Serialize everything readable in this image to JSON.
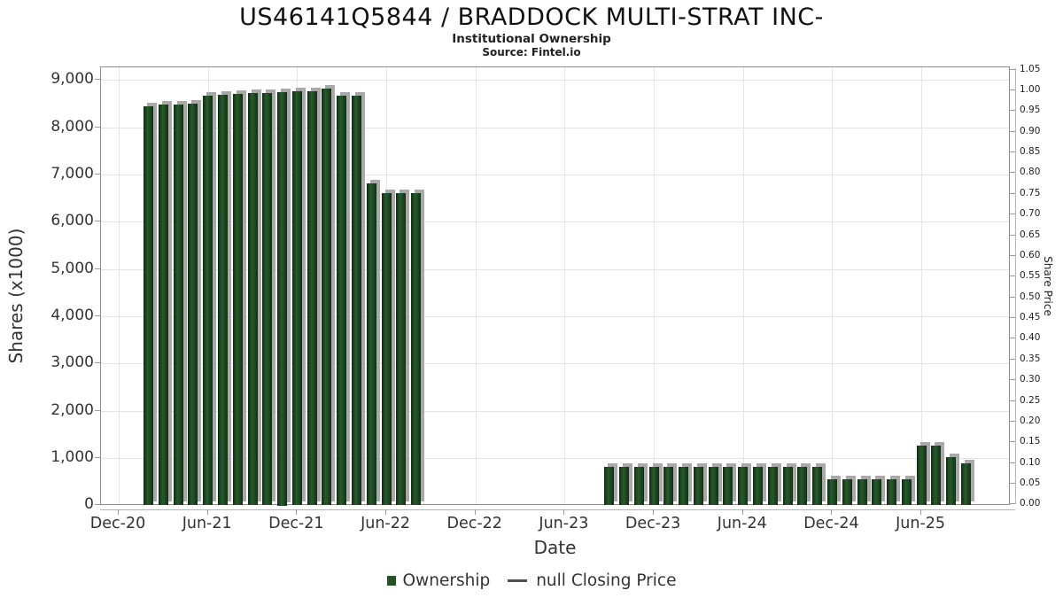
{
  "page": {
    "title": "US46141Q5844 / BRADDOCK MULTI-STRAT INC-",
    "subtitle": "Institutional Ownership",
    "source": "Source: Fintel.io"
  },
  "legend": {
    "items": [
      {
        "label": "Ownership",
        "marker": "square",
        "color": "#235226"
      },
      {
        "label": "null Closing Price",
        "marker": "line",
        "color": "#4d4d4d"
      }
    ]
  },
  "chart_data": {
    "type": "bar",
    "title": "US46141Q5844 / BRADDOCK MULTI-STRAT INC-",
    "subtitle": "Institutional Ownership",
    "source": "Source: Fintel.io",
    "xlabel": "Date",
    "ylabel": "Shares (x1000)",
    "ylabel_right": "Share Price",
    "grid": true,
    "legend_position": "bottom",
    "bar_color": "#1d4a23",
    "bar_shadow_color": "#a9a9a9",
    "x_axis": {
      "tick_labels": [
        "Dec-20",
        "Jun-21",
        "Dec-21",
        "Jun-22",
        "Dec-22",
        "Jun-23",
        "Dec-23",
        "Jun-24",
        "Dec-24",
        "Jun-25"
      ],
      "tick_interval_months": 6
    },
    "y_axis_left": {
      "min": 0,
      "max": 9000,
      "step": 1000,
      "tick_labels": [
        "9,000",
        "8,000",
        "7,000",
        "6,000",
        "5,000",
        "4,000",
        "3,000",
        "2,000",
        "1,000",
        "0"
      ]
    },
    "y_axis_right": {
      "min": 0.0,
      "max": 1.05,
      "step": 0.05,
      "tick_labels": [
        "1.05",
        "1.00",
        "0.95",
        "0.90",
        "0.85",
        "0.80",
        "0.75",
        "0.70",
        "0.65",
        "0.60",
        "0.55",
        "0.50",
        "0.45",
        "0.40",
        "0.35",
        "0.30",
        "0.25",
        "0.20",
        "0.15",
        "0.10",
        "0.05",
        "0.00"
      ]
    },
    "series": [
      {
        "name": "Ownership",
        "unit": "shares_x1000",
        "points": [
          {
            "month": "Feb-21",
            "value": 8440
          },
          {
            "month": "Mar-21",
            "value": 8480
          },
          {
            "month": "Apr-21",
            "value": 8480
          },
          {
            "month": "May-21",
            "value": 8500
          },
          {
            "month": "Jun-21",
            "value": 8670
          },
          {
            "month": "Jul-21",
            "value": 8680
          },
          {
            "month": "Aug-21",
            "value": 8700
          },
          {
            "month": "Sep-21",
            "value": 8730
          },
          {
            "month": "Oct-21",
            "value": 8730
          },
          {
            "month": "Nov-21",
            "value": 8750
          },
          {
            "month": "Dec-21",
            "value": 8770
          },
          {
            "month": "Jan-22",
            "value": 8770
          },
          {
            "month": "Feb-22",
            "value": 8810
          },
          {
            "month": "Mar-22",
            "value": 8660
          },
          {
            "month": "Apr-22",
            "value": 8660
          },
          {
            "month": "May-22",
            "value": 6820
          },
          {
            "month": "Jun-22",
            "value": 6600
          },
          {
            "month": "Jul-22",
            "value": 6610
          },
          {
            "month": "Aug-22",
            "value": 6610
          },
          {
            "month": "Sep-23",
            "value": 810
          },
          {
            "month": "Oct-23",
            "value": 810
          },
          {
            "month": "Nov-23",
            "value": 810
          },
          {
            "month": "Dec-23",
            "value": 810
          },
          {
            "month": "Jan-24",
            "value": 810
          },
          {
            "month": "Feb-24",
            "value": 810
          },
          {
            "month": "Mar-24",
            "value": 810
          },
          {
            "month": "Apr-24",
            "value": 810
          },
          {
            "month": "May-24",
            "value": 810
          },
          {
            "month": "Jun-24",
            "value": 810
          },
          {
            "month": "Jul-24",
            "value": 810
          },
          {
            "month": "Aug-24",
            "value": 810
          },
          {
            "month": "Sep-24",
            "value": 810
          },
          {
            "month": "Oct-24",
            "value": 810
          },
          {
            "month": "Nov-24",
            "value": 810
          },
          {
            "month": "Dec-24",
            "value": 550
          },
          {
            "month": "Jan-25",
            "value": 550
          },
          {
            "month": "Feb-25",
            "value": 550
          },
          {
            "month": "Mar-25",
            "value": 550
          },
          {
            "month": "Apr-25",
            "value": 550
          },
          {
            "month": "May-25",
            "value": 550
          },
          {
            "month": "Jun-25",
            "value": 1260
          },
          {
            "month": "Jul-25",
            "value": 1260
          },
          {
            "month": "Aug-25",
            "value": 1030
          },
          {
            "month": "Sep-25",
            "value": 885
          }
        ]
      },
      {
        "name": "null Closing Price",
        "unit": "price",
        "points": []
      }
    ]
  }
}
